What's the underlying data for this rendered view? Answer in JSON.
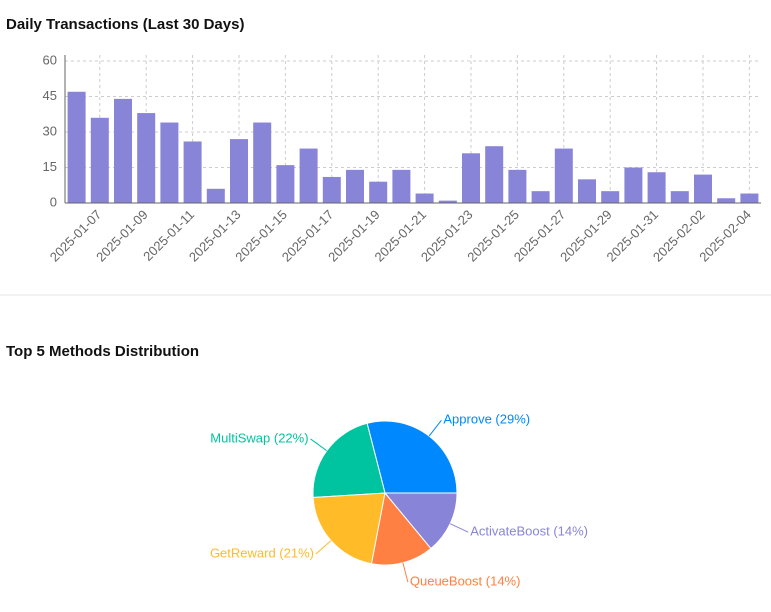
{
  "chart_data": [
    {
      "type": "bar",
      "title": "Daily Transactions (Last 30 Days)",
      "categories": [
        null,
        "2025-01-07",
        null,
        "2025-01-09",
        null,
        "2025-01-11",
        null,
        "2025-01-13",
        null,
        "2025-01-15",
        null,
        "2025-01-17",
        null,
        "2025-01-19",
        null,
        "2025-01-21",
        null,
        "2025-01-23",
        null,
        "2025-01-25",
        null,
        "2025-01-27",
        null,
        "2025-01-29",
        null,
        "2025-01-31",
        null,
        "2025-02-02",
        null,
        "2025-02-04"
      ],
      "values": [
        47,
        36,
        44,
        38,
        34,
        26,
        6,
        27,
        34,
        16,
        23,
        11,
        14,
        9,
        14,
        4,
        1,
        21,
        24,
        14,
        5,
        23,
        10,
        5,
        15,
        13,
        5,
        12,
        2,
        4
      ],
      "color": "#8884d8",
      "ylim": [
        0,
        60
      ],
      "yticks": [
        0,
        15,
        30,
        45,
        60
      ],
      "grid": true
    },
    {
      "type": "pie",
      "title": "Top 5 Methods Distribution",
      "values": [
        29,
        22,
        21,
        14,
        14
      ],
      "value_labels": [
        "Approve (29%)",
        "MultiSwap (22%)",
        "GetReward (21%)",
        "QueueBoost (14%)",
        "ActivateBoost (14%)"
      ],
      "colors": [
        "#0088FE",
        "#00C49F",
        "#FFBB28",
        "#FF8042",
        "#8884d8"
      ]
    }
  ]
}
